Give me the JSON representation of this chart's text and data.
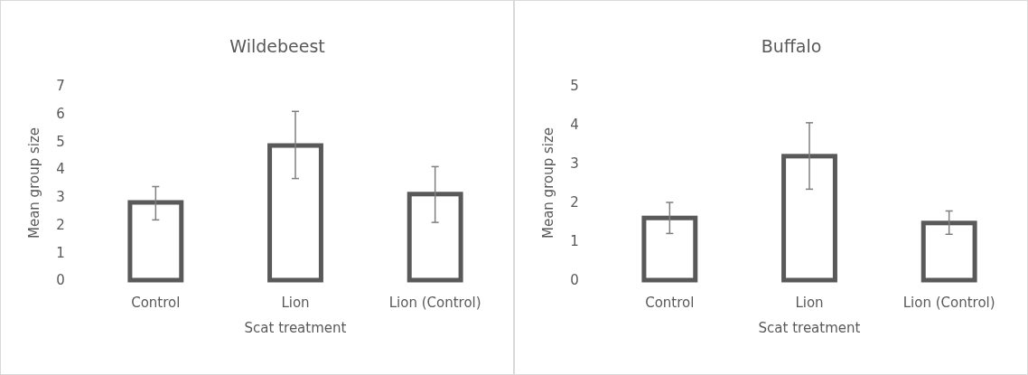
{
  "chart_data": [
    {
      "type": "bar",
      "title": "Wildebeest",
      "xlabel": "Scat treatment",
      "ylabel": "Mean group size",
      "categories": [
        "Control",
        "Lion",
        "Lion (Control)"
      ],
      "values": [
        2.8,
        4.85,
        3.1
      ],
      "errors": [
        [
          2.17,
          3.37
        ],
        [
          3.66,
          6.08
        ],
        [
          2.08,
          4.09
        ]
      ],
      "color": "#595959",
      "ylim": [
        0,
        7
      ],
      "yticks": [
        0,
        1,
        2,
        3,
        4,
        5,
        6,
        7
      ],
      "grid": false
    },
    {
      "type": "bar",
      "title": "Buffalo",
      "xlabel": "Scat treatment",
      "ylabel": "Mean group size",
      "categories": [
        "Control",
        "Lion",
        "Lion (Control)"
      ],
      "values": [
        1.6,
        3.19,
        1.47
      ],
      "errors": [
        [
          1.2,
          2.0
        ],
        [
          2.34,
          4.05
        ],
        [
          1.18,
          1.78
        ]
      ],
      "color": "#595959",
      "ylim": [
        0,
        5
      ],
      "yticks": [
        0,
        1,
        2,
        3,
        4,
        5
      ],
      "grid": false
    }
  ]
}
